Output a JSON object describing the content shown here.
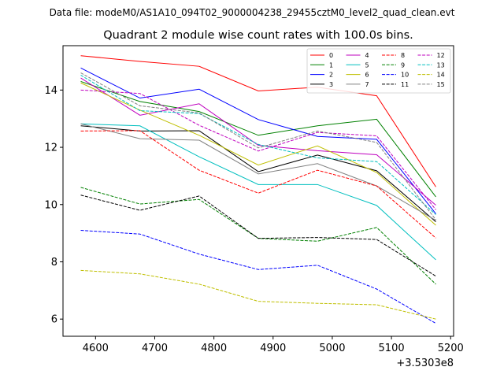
{
  "supertitle": "Data file: modeM0/AS1A10_094T02_9000004238_29455cztM0_level2_quad_clean.evt",
  "chart_data": {
    "type": "line",
    "title": "Quadrant 2 module wise count rates with 100.0s bins.",
    "xlabel": "",
    "ylabel": "",
    "x_offset_label": "+3.5303e8",
    "x": [
      4575,
      4675,
      4775,
      4875,
      4975,
      5075,
      5175
    ],
    "xlim": [
      4545,
      5205
    ],
    "ylim": [
      5.4,
      15.55
    ],
    "xticks": [
      4600,
      4700,
      4800,
      4900,
      5000,
      5100,
      5200
    ],
    "yticks": [
      6,
      8,
      10,
      12,
      14
    ],
    "grid": false,
    "legend": "top-right",
    "series": [
      {
        "name": "0",
        "color": "#ff0000",
        "dashed": false,
        "values": [
          15.2,
          15.0,
          14.83,
          13.97,
          14.1,
          13.8,
          10.62
        ]
      },
      {
        "name": "1",
        "color": "#008000",
        "dashed": false,
        "values": [
          14.3,
          13.6,
          13.25,
          12.42,
          12.75,
          12.98,
          10.27
        ]
      },
      {
        "name": "2",
        "color": "#0000ff",
        "dashed": false,
        "values": [
          14.77,
          13.72,
          14.03,
          12.97,
          12.38,
          12.28,
          9.68
        ]
      },
      {
        "name": "3",
        "color": "#000000",
        "dashed": false,
        "values": [
          12.75,
          12.57,
          12.58,
          11.15,
          11.73,
          11.18,
          9.4
        ]
      },
      {
        "name": "4",
        "color": "#bf00bf",
        "dashed": false,
        "values": [
          14.42,
          13.12,
          13.52,
          12.07,
          11.88,
          11.74,
          9.98
        ]
      },
      {
        "name": "5",
        "color": "#00bfbf",
        "dashed": false,
        "values": [
          12.82,
          12.75,
          11.67,
          10.7,
          10.7,
          9.97,
          8.07
        ]
      },
      {
        "name": "6",
        "color": "#bfbf00",
        "dashed": false,
        "values": [
          14.25,
          13.3,
          12.42,
          11.38,
          12.05,
          11.12,
          9.28
        ]
      },
      {
        "name": "7",
        "color": "#808080",
        "dashed": false,
        "values": [
          12.82,
          12.3,
          12.25,
          11.07,
          11.43,
          10.65,
          9.45
        ]
      },
      {
        "name": "8",
        "color": "#ff0000",
        "dashed": true,
        "values": [
          12.57,
          12.58,
          11.2,
          10.4,
          11.2,
          10.65,
          8.83
        ]
      },
      {
        "name": "9",
        "color": "#008000",
        "dashed": true,
        "values": [
          10.6,
          10.02,
          10.18,
          8.82,
          8.72,
          9.2,
          7.22
        ]
      },
      {
        "name": "10",
        "color": "#0000ff",
        "dashed": true,
        "values": [
          9.1,
          8.97,
          8.27,
          7.73,
          7.88,
          7.05,
          5.85
        ]
      },
      {
        "name": "11",
        "color": "#000000",
        "dashed": true,
        "values": [
          10.33,
          9.8,
          10.3,
          8.82,
          8.85,
          8.78,
          7.5
        ]
      },
      {
        "name": "12",
        "color": "#bf00bf",
        "dashed": true,
        "values": [
          14.0,
          13.88,
          12.77,
          11.87,
          12.52,
          12.4,
          9.82
        ]
      },
      {
        "name": "13",
        "color": "#00bfbf",
        "dashed": true,
        "values": [
          14.52,
          13.28,
          13.18,
          12.1,
          11.63,
          11.5,
          9.65
        ]
      },
      {
        "name": "14",
        "color": "#bfbf00",
        "dashed": true,
        "values": [
          7.7,
          7.58,
          7.22,
          6.62,
          6.55,
          6.5,
          6.0
        ]
      },
      {
        "name": "15",
        "color": "#808080",
        "dashed": true,
        "values": [
          14.6,
          13.45,
          13.2,
          11.98,
          12.57,
          12.17,
          9.47
        ]
      }
    ]
  }
}
